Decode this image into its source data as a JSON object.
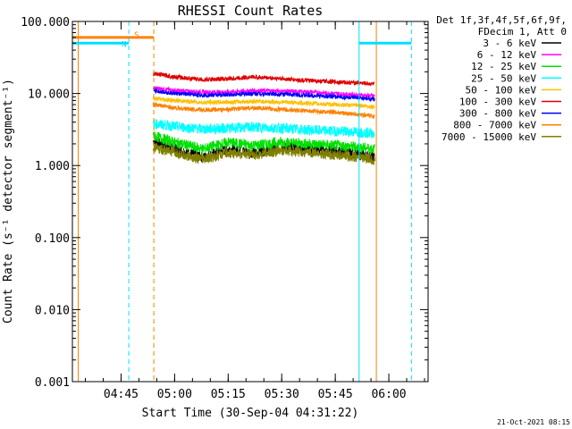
{
  "chart_data": {
    "type": "line",
    "title": "RHESSI Count Rates",
    "xlabel": "Start Time (30-Sep-04 04:31:22)",
    "ylabel": "Count Rate (s⁻¹ detector segment⁻¹)",
    "y_scale": "log",
    "ylim": [
      0.001,
      100
    ],
    "xlim": [
      "04:31:22",
      "06:11:00"
    ],
    "x_ticks": [
      "04:45",
      "05:00",
      "05:15",
      "05:30",
      "05:45",
      "06:00"
    ],
    "y_ticks": [
      "0.001",
      "0.010",
      "0.100",
      "1.000",
      "10.000",
      "100.000"
    ],
    "legend": {
      "position": "right",
      "header": [
        "Det 1f,3f,4f,5f,6f,9f,",
        "FDecim 1, Att 0"
      ],
      "entries": [
        {
          "label": "3 - 6 keV",
          "color": "#000000"
        },
        {
          "label": "6 - 12 keV",
          "color": "#ff00ff"
        },
        {
          "label": "12 - 25 keV",
          "color": "#00e000"
        },
        {
          "label": "25 - 50 keV",
          "color": "#00ffff"
        },
        {
          "label": "50 - 100 keV",
          "color": "#ffc000"
        },
        {
          "label": "100 - 300 keV",
          "color": "#e00000"
        },
        {
          "label": "300 - 800 keV",
          "color": "#0000ff"
        },
        {
          "label": "800 - 7000 keV",
          "color": "#ff8000"
        },
        {
          "label": "7000 - 15000 keV",
          "color": "#808000"
        }
      ]
    },
    "series": [
      {
        "name": "3 - 6 keV",
        "color": "#000000",
        "x": [
          "04:54:00",
          "05:00:00",
          "05:08:00",
          "05:15:00",
          "05:22:00",
          "05:30:00",
          "05:38:00",
          "05:45:00",
          "05:52:00",
          "05:56:00"
        ],
        "y": [
          2.2,
          1.7,
          1.3,
          1.7,
          1.5,
          1.8,
          1.7,
          1.6,
          1.4,
          1.3
        ]
      },
      {
        "name": "6 - 12 keV",
        "color": "#ff00ff",
        "x": [
          "04:54:00",
          "05:00:00",
          "05:08:00",
          "05:15:00",
          "05:22:00",
          "05:30:00",
          "05:38:00",
          "05:45:00",
          "05:52:00",
          "05:56:00"
        ],
        "y": [
          12.0,
          11.0,
          10.5,
          10.5,
          11.0,
          10.8,
          10.5,
          10.0,
          9.5,
          9.2
        ]
      },
      {
        "name": "12 - 25 keV",
        "color": "#00e000",
        "x": [
          "04:54:00",
          "05:00:00",
          "05:08:00",
          "05:15:00",
          "05:22:00",
          "05:30:00",
          "05:38:00",
          "05:45:00",
          "05:52:00",
          "05:56:00"
        ],
        "y": [
          2.6,
          2.1,
          1.7,
          2.1,
          1.9,
          2.1,
          2.0,
          1.9,
          1.8,
          1.7
        ]
      },
      {
        "name": "25 - 50 keV",
        "color": "#00ffff",
        "x": [
          "04:54:00",
          "05:00:00",
          "05:08:00",
          "05:15:00",
          "05:22:00",
          "05:30:00",
          "05:38:00",
          "05:45:00",
          "05:52:00",
          "05:56:00"
        ],
        "y": [
          3.8,
          3.5,
          3.2,
          3.3,
          3.4,
          3.3,
          3.1,
          3.0,
          2.9,
          2.8
        ]
      },
      {
        "name": "50 - 100 keV",
        "color": "#ffc000",
        "x": [
          "04:54:00",
          "05:00:00",
          "05:08:00",
          "05:15:00",
          "05:22:00",
          "05:30:00",
          "05:38:00",
          "05:45:00",
          "05:52:00",
          "05:56:00"
        ],
        "y": [
          8.5,
          8.0,
          7.5,
          7.6,
          7.8,
          7.6,
          7.3,
          7.0,
          6.8,
          6.5
        ]
      },
      {
        "name": "100 - 300 keV",
        "color": "#e00000",
        "x": [
          "04:54:00",
          "05:00:00",
          "05:08:00",
          "05:15:00",
          "05:22:00",
          "05:30:00",
          "05:38:00",
          "05:45:00",
          "05:52:00",
          "05:56:00"
        ],
        "y": [
          19.0,
          17.0,
          15.5,
          16.0,
          17.0,
          16.0,
          15.0,
          14.5,
          14.0,
          13.5
        ]
      },
      {
        "name": "300 - 800 keV",
        "color": "#0000ff",
        "x": [
          "04:54:00",
          "05:00:00",
          "05:08:00",
          "05:15:00",
          "05:22:00",
          "05:30:00",
          "05:38:00",
          "05:45:00",
          "05:52:00",
          "05:56:00"
        ],
        "y": [
          11.0,
          10.0,
          9.5,
          9.6,
          10.0,
          9.8,
          9.4,
          9.0,
          8.6,
          8.3
        ]
      },
      {
        "name": "800 - 7000 keV",
        "color": "#ff8000",
        "x": [
          "04:54:00",
          "05:00:00",
          "05:08:00",
          "05:15:00",
          "05:22:00",
          "05:30:00",
          "05:38:00",
          "05:45:00",
          "05:52:00",
          "05:56:00"
        ],
        "y": [
          7.0,
          6.3,
          5.9,
          6.0,
          6.3,
          6.0,
          5.7,
          5.5,
          5.1,
          4.8
        ]
      },
      {
        "name": "7000 - 15000 keV",
        "color": "#808000",
        "x": [
          "04:54:00",
          "05:00:00",
          "05:08:00",
          "05:15:00",
          "05:22:00",
          "05:30:00",
          "05:38:00",
          "05:45:00",
          "05:52:00",
          "05:56:00"
        ],
        "y": [
          1.8,
          1.5,
          1.2,
          1.5,
          1.4,
          1.6,
          1.5,
          1.4,
          1.3,
          1.2
        ]
      }
    ],
    "flags": [
      {
        "label": "S",
        "color": "#ff8000",
        "level": 60,
        "start": "04:31:22",
        "end": "04:54:10"
      },
      {
        "label": "N",
        "color": "#00e0ff",
        "level": 50,
        "start": "04:31:22",
        "end": "04:47:10"
      },
      {
        "label": "",
        "color": "#00e0ff",
        "level": 50,
        "start": "05:51:40",
        "end": "06:06:20"
      }
    ],
    "markers": [
      {
        "time": "04:31:22",
        "color": "#00e0ff",
        "style": "solid"
      },
      {
        "time": "04:33:00",
        "color": "#ff8000",
        "style": "solid"
      },
      {
        "time": "04:47:10",
        "color": "#00e0ff",
        "style": "dashed"
      },
      {
        "time": "04:54:10",
        "color": "#ff8000",
        "style": "dashed"
      },
      {
        "time": "05:51:40",
        "color": "#00e0ff",
        "style": "solid"
      },
      {
        "time": "05:56:30",
        "color": "#ff8000",
        "style": "solid"
      },
      {
        "time": "06:06:20",
        "color": "#00e0ff",
        "style": "dashed"
      }
    ],
    "grid": false,
    "timestamp": "21-Oct-2021 08:15"
  }
}
